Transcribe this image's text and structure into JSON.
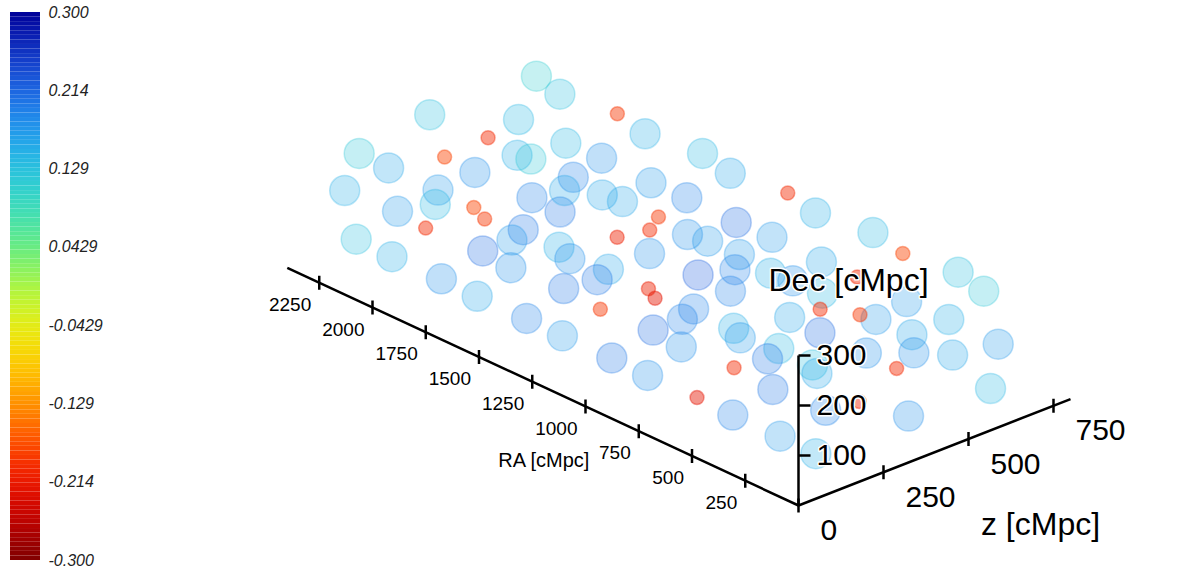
{
  "chart_data": {
    "type": "volume",
    "ra_label": "RA [cMpc]",
    "dec_label": "Dec [cMpc]",
    "z_label": "z [cMpc]",
    "ra_lim": [
      0,
      2400
    ],
    "ra_ticks": [
      250,
      500,
      750,
      1000,
      1250,
      1500,
      1750,
      2000,
      2250
    ],
    "dec_lim": [
      0,
      300
    ],
    "dec_ticks": [
      100,
      200,
      300
    ],
    "z_lim": [
      0,
      800
    ],
    "z_ticks": [
      0,
      250,
      500,
      750
    ],
    "colorbar_lim": [
      -0.3,
      0.3
    ],
    "colorbar_ticks": [
      {
        "value": 0.3,
        "label": "0.300"
      },
      0.214,
      0.129,
      0.0429,
      -0.0429,
      -0.129,
      -0.214,
      {
        "value": -0.3,
        "label": "-0.300"
      }
    ],
    "points": {
      "ra": [
        110,
        90,
        120,
        80,
        130,
        100,
        110,
        90,
        120,
        310,
        290,
        330,
        280,
        320,
        300,
        300,
        270,
        320,
        500,
        520,
        480,
        510,
        490,
        530,
        480,
        510,
        500,
        700,
        720,
        690,
        710,
        680,
        730,
        700,
        690,
        720,
        900,
        880,
        920,
        890,
        910,
        930,
        880,
        900,
        910,
        1100,
        1120,
        1080,
        1090,
        1110,
        1130,
        1100,
        1080,
        1120,
        1300,
        1280,
        1320,
        1310,
        1290,
        1330,
        1300,
        1280,
        1310,
        1500,
        1520,
        1480,
        1510,
        1490,
        1530,
        1500,
        1480,
        1520,
        1700,
        1680,
        1720,
        1690,
        1710,
        1730,
        1700,
        1680,
        1710,
        1900,
        1920,
        1880,
        1910,
        1890,
        1930,
        1900,
        1880,
        1920,
        2100,
        2080,
        2120,
        2090,
        2110,
        2130,
        2100,
        2080,
        2110,
        2300,
        2280,
        2310,
        2290,
        2300,
        2320,
        2270,
        2290,
        2300
      ],
      "z": [
        120,
        380,
        640,
        130,
        370,
        650,
        110,
        390,
        620,
        140,
        360,
        660,
        100,
        400,
        630,
        130,
        350,
        670,
        120,
        380,
        640,
        130,
        370,
        650,
        110,
        390,
        620,
        140,
        360,
        660,
        100,
        400,
        630,
        130,
        350,
        670,
        120,
        380,
        640,
        130,
        370,
        650,
        110,
        390,
        620,
        140,
        360,
        660,
        100,
        400,
        630,
        130,
        350,
        670,
        120,
        380,
        640,
        130,
        370,
        650,
        110,
        390,
        620,
        140,
        360,
        660,
        100,
        400,
        630,
        130,
        350,
        670,
        120,
        380,
        640,
        130,
        370,
        650,
        110,
        390,
        620,
        140,
        360,
        660,
        100,
        400,
        630,
        130,
        350,
        670,
        120,
        380,
        640,
        130,
        370,
        650,
        110,
        390,
        620,
        140,
        360,
        660,
        100,
        400,
        630,
        130,
        350,
        670
      ],
      "dec": [
        50,
        60,
        40,
        140,
        150,
        130,
        230,
        220,
        240,
        40,
        55,
        60,
        150,
        135,
        145,
        220,
        235,
        225,
        50,
        60,
        40,
        140,
        150,
        130,
        230,
        220,
        240,
        40,
        55,
        60,
        150,
        135,
        145,
        220,
        235,
        225,
        50,
        60,
        40,
        140,
        150,
        130,
        230,
        220,
        240,
        40,
        55,
        60,
        150,
        135,
        145,
        220,
        235,
        225,
        50,
        60,
        40,
        140,
        150,
        130,
        230,
        220,
        240,
        40,
        55,
        60,
        150,
        135,
        145,
        220,
        235,
        225,
        50,
        60,
        40,
        140,
        150,
        130,
        230,
        220,
        240,
        40,
        55,
        60,
        150,
        135,
        145,
        220,
        235,
        225,
        50,
        60,
        40,
        140,
        150,
        130,
        230,
        220,
        240,
        40,
        55,
        60,
        150,
        135,
        145,
        220,
        235,
        225
      ],
      "value": [
        0.15,
        0.18,
        0.14,
        0.19,
        -0.2,
        0.17,
        0.13,
        0.16,
        0.12,
        0.17,
        -0.21,
        0.16,
        0.2,
        0.18,
        0.15,
        0.14,
        -0.19,
        0.13,
        0.19,
        0.16,
        0.18,
        -0.2,
        0.21,
        0.17,
        0.15,
        0.14,
        -0.18,
        -0.22,
        0.2,
        0.17,
        0.18,
        0.16,
        -0.2,
        0.19,
        0.15,
        0.14,
        0.18,
        0.17,
        -0.2,
        0.21,
        0.19,
        0.16,
        -0.21,
        0.17,
        0.15,
        0.2,
        0.19,
        0.18,
        -0.19,
        0.22,
        0.17,
        0.16,
        0.18,
        -0.2,
        0.17,
        -0.22,
        0.19,
        0.2,
        0.18,
        0.21,
        0.15,
        -0.19,
        0.16,
        0.19,
        0.2,
        0.17,
        0.18,
        -0.21,
        0.19,
        0.2,
        0.16,
        0.14,
        0.16,
        0.18,
        -0.2,
        0.21,
        0.2,
        0.17,
        -0.18,
        0.19,
        0.15,
        0.18,
        0.17,
        0.16,
        -0.2,
        0.19,
        0.18,
        0.17,
        0.15,
        -0.19,
        0.15,
        -0.19,
        0.16,
        0.17,
        0.18,
        0.14,
        0.16,
        -0.2,
        0.13,
        0.13,
        0.14,
        0.12,
        0.15,
        -0.18,
        0.14,
        0.12,
        0.13,
        0.11
      ]
    }
  }
}
